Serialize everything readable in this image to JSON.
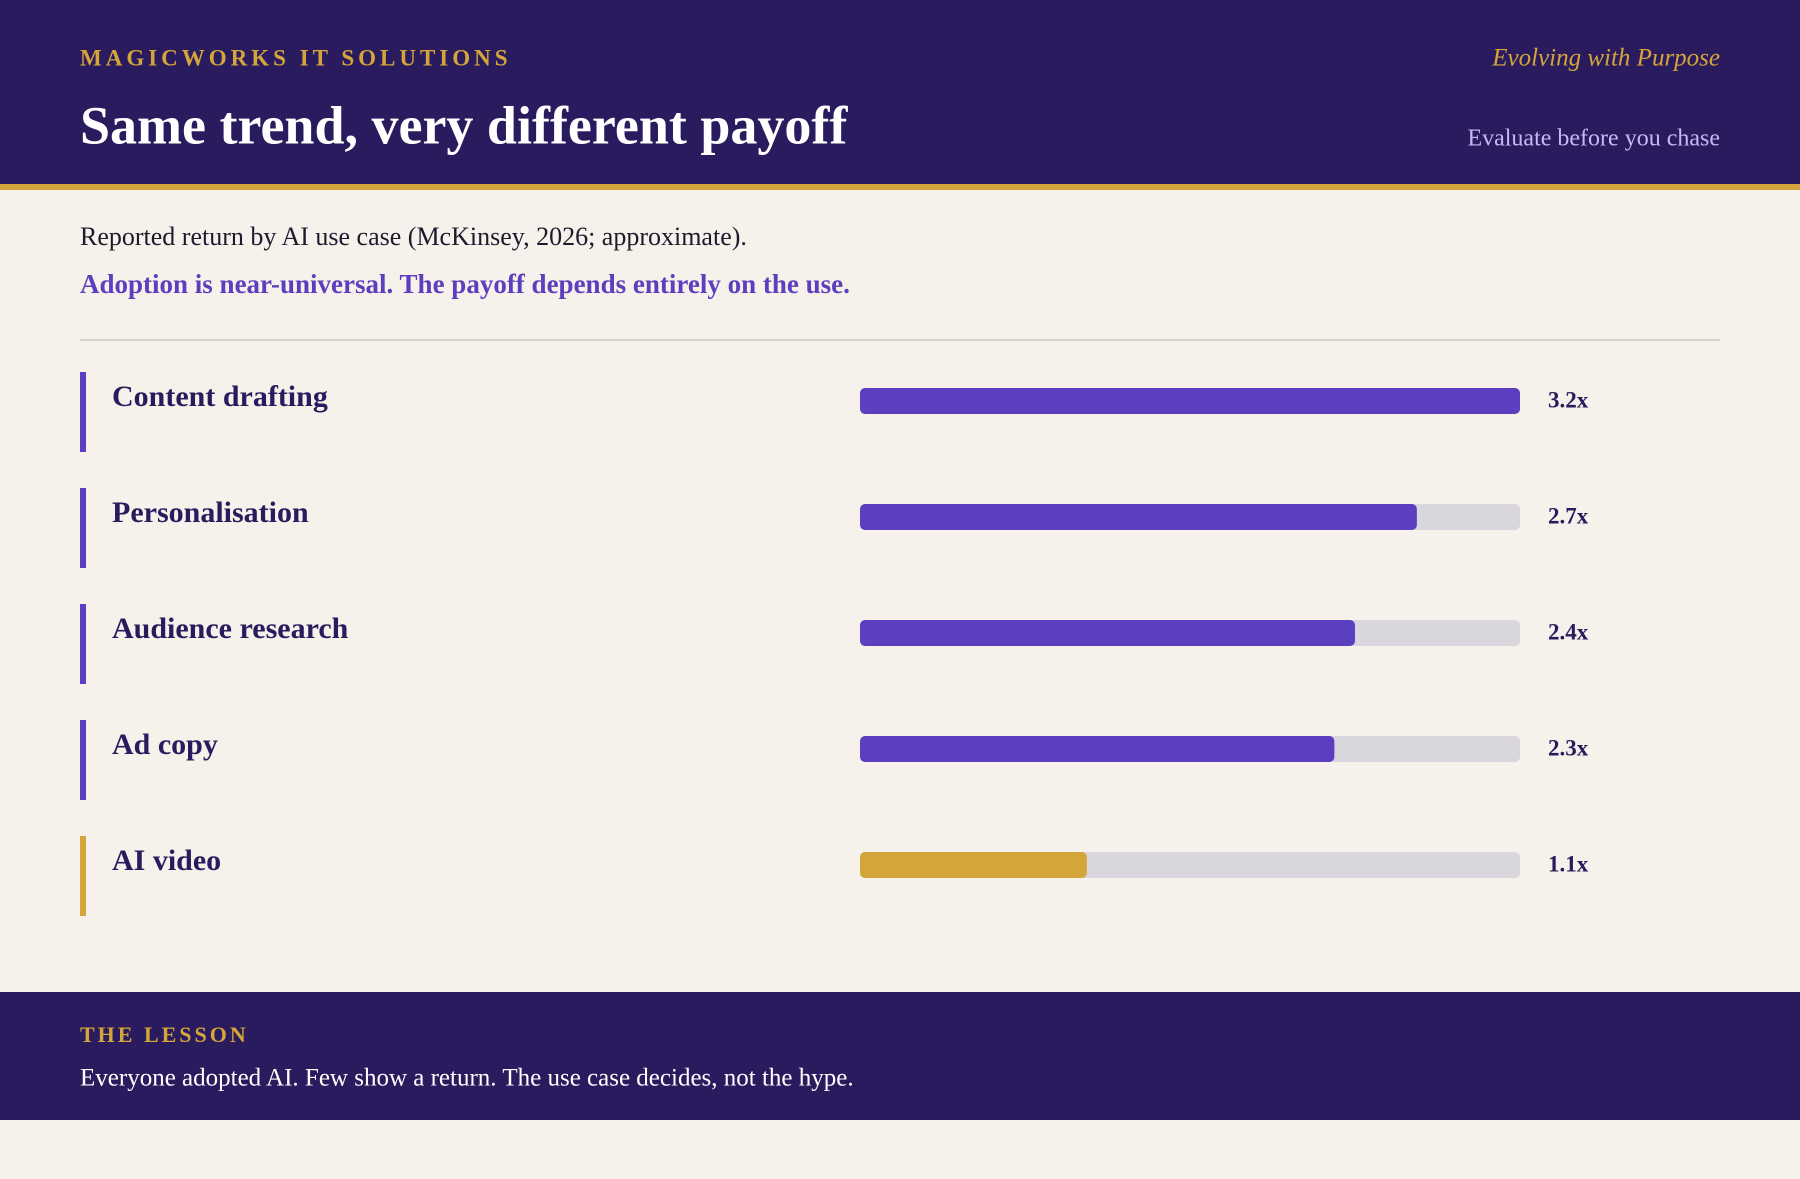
{
  "header": {
    "brand": "MAGICWORKS IT SOLUTIONS",
    "tagline": "Evolving with Purpose",
    "title": "Same trend, very different payoff",
    "aside": "Evaluate before you chase"
  },
  "chart_data": {
    "type": "hbar",
    "subtitle": "Reported return by AI use case (McKinsey, 2026; approximate).",
    "annotation": "Adoption is near-universal. The payoff depends entirely on the use.",
    "categories": [
      "Content drafting",
      "Personalisation",
      "Audience research",
      "Ad copy",
      "AI video"
    ],
    "values": [
      3.2,
      2.7,
      2.4,
      2.3,
      1.1
    ],
    "value_labels": [
      "3.2x",
      "2.7x",
      "2.4x",
      "2.3x",
      "1.1x"
    ],
    "colors": [
      "#5b3fbf",
      "#5b3fbf",
      "#5b3fbf",
      "#5b3fbf",
      "#d4a53a"
    ],
    "track_color": "#d9d7dd",
    "xlim": [
      0,
      3.2
    ]
  },
  "footer": {
    "label": "THE LESSON",
    "text": "Everyone adopted AI. Few show a return. The use case decides, not the hype."
  }
}
